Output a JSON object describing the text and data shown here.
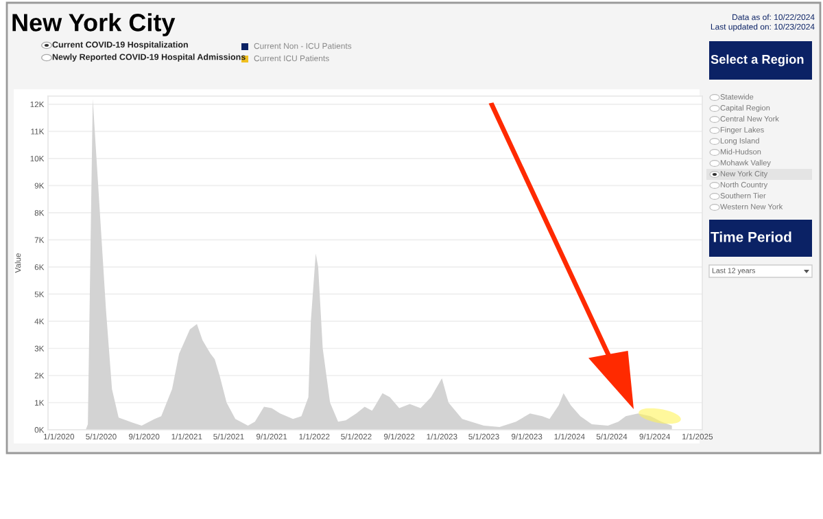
{
  "chart_data": {
    "type": "area",
    "title": "New York City",
    "ylabel": "Value",
    "annotations": [
      "Data as of: 10/22/2024",
      "Last updated on: 10/23/2024",
      "Current COVID-19 Hospitalization",
      "Newly Reported COVID-19 Hospital Admissions",
      "Current Non - ICU Patients",
      "Current ICU Patients",
      "Select a Region",
      "Statewide",
      "Capital Region",
      "Central New York",
      "Finger Lakes",
      "Long Island",
      "Mid-Hudson",
      "Mohawk Valley",
      "New York City",
      "North Country",
      "Southern Tier",
      "Western New York",
      "Time Period",
      "Last 12 years"
    ],
    "x": [
      "2020-03-18",
      "2020-03-24",
      "2020-04-07",
      "2020-05-15",
      "2020-06-01",
      "2020-06-20",
      "2020-08-01",
      "2020-08-25",
      "2020-10-01",
      "2020-10-20",
      "2020-11-20",
      "2020-12-10",
      "2021-01-10",
      "2021-01-30",
      "2021-02-15",
      "2021-03-10",
      "2021-03-22",
      "2021-04-05",
      "2021-04-25",
      "2021-05-20",
      "2021-06-25",
      "2021-07-15",
      "2021-08-10",
      "2021-09-01",
      "2021-09-25",
      "2021-11-01",
      "2021-11-25",
      "2021-12-15",
      "2021-12-22",
      "2022-01-05",
      "2022-01-12",
      "2022-01-25",
      "2022-02-15",
      "2022-03-10",
      "2022-04-01",
      "2022-05-01",
      "2022-05-25",
      "2022-06-15",
      "2022-06-20",
      "2022-07-15",
      "2022-08-05",
      "2022-09-01",
      "2022-10-01",
      "2022-11-01",
      "2022-12-01",
      "2023-01-01",
      "2023-01-20",
      "2023-02-28",
      "2023-05-01",
      "2023-06-15",
      "2023-08-01",
      "2023-09-10",
      "2023-10-15",
      "2023-11-05",
      "2023-12-01",
      "2023-12-15",
      "2024-01-05",
      "2024-02-01",
      "2024-03-05",
      "2024-04-20",
      "2024-05-20",
      "2024-06-10",
      "2024-07-15",
      "2024-08-20",
      "2024-09-20",
      "2024-10-20"
    ],
    "values": [
      0,
      200,
      12200,
      4400,
      1500,
      450,
      250,
      150,
      400,
      500,
      1500,
      2800,
      3700,
      3900,
      3300,
      2800,
      2600,
      2000,
      1000,
      400,
      150,
      300,
      850,
      800,
      600,
      400,
      500,
      1200,
      4000,
      6500,
      6000,
      3000,
      1000,
      300,
      350,
      600,
      850,
      700,
      800,
      1350,
      1200,
      800,
      950,
      800,
      1200,
      1900,
      1000,
      400,
      150,
      100,
      300,
      600,
      500,
      400,
      900,
      1350,
      900,
      500,
      200,
      150,
      300,
      500,
      600,
      500,
      300,
      150
    ],
    "color": "#d3d3d3",
    "xlim": [
      "2019-12-01",
      "2025-01-15"
    ],
    "xticks": [
      {
        "value": "2020-01-01",
        "label": "1/1/2020"
      },
      {
        "value": "2020-05-01",
        "label": "5/1/2020"
      },
      {
        "value": "2020-09-01",
        "label": "9/1/2020"
      },
      {
        "value": "2021-01-01",
        "label": "1/1/2021"
      },
      {
        "value": "2021-05-01",
        "label": "5/1/2021"
      },
      {
        "value": "2021-09-01",
        "label": "9/1/2021"
      },
      {
        "value": "2022-01-01",
        "label": "1/1/2022"
      },
      {
        "value": "2022-05-01",
        "label": "5/1/2022"
      },
      {
        "value": "2022-09-01",
        "label": "9/1/2022"
      },
      {
        "value": "2023-01-01",
        "label": "1/1/2023"
      },
      {
        "value": "2023-05-01",
        "label": "5/1/2023"
      },
      {
        "value": "2023-09-01",
        "label": "9/1/2023"
      },
      {
        "value": "2024-01-01",
        "label": "1/1/2024"
      },
      {
        "value": "2024-05-01",
        "label": "5/1/2024"
      },
      {
        "value": "2024-09-01",
        "label": "9/1/2024"
      },
      {
        "value": "2025-01-01",
        "label": "1/1/2025"
      }
    ],
    "ylim": [
      0,
      12300
    ],
    "yticks": [
      {
        "value": 0,
        "label": "0K"
      },
      {
        "value": 1000,
        "label": "1K"
      },
      {
        "value": 2000,
        "label": "2K"
      },
      {
        "value": 3000,
        "label": "3K"
      },
      {
        "value": 4000,
        "label": "4K"
      },
      {
        "value": 5000,
        "label": "5K"
      },
      {
        "value": 6000,
        "label": "6K"
      },
      {
        "value": 7000,
        "label": "7K"
      },
      {
        "value": 8000,
        "label": "8K"
      },
      {
        "value": 9000,
        "label": "9K"
      },
      {
        "value": 10000,
        "label": "10K"
      },
      {
        "value": 11000,
        "label": "11K"
      },
      {
        "value": 12000,
        "label": "12K"
      }
    ],
    "grid": "y"
  }
}
